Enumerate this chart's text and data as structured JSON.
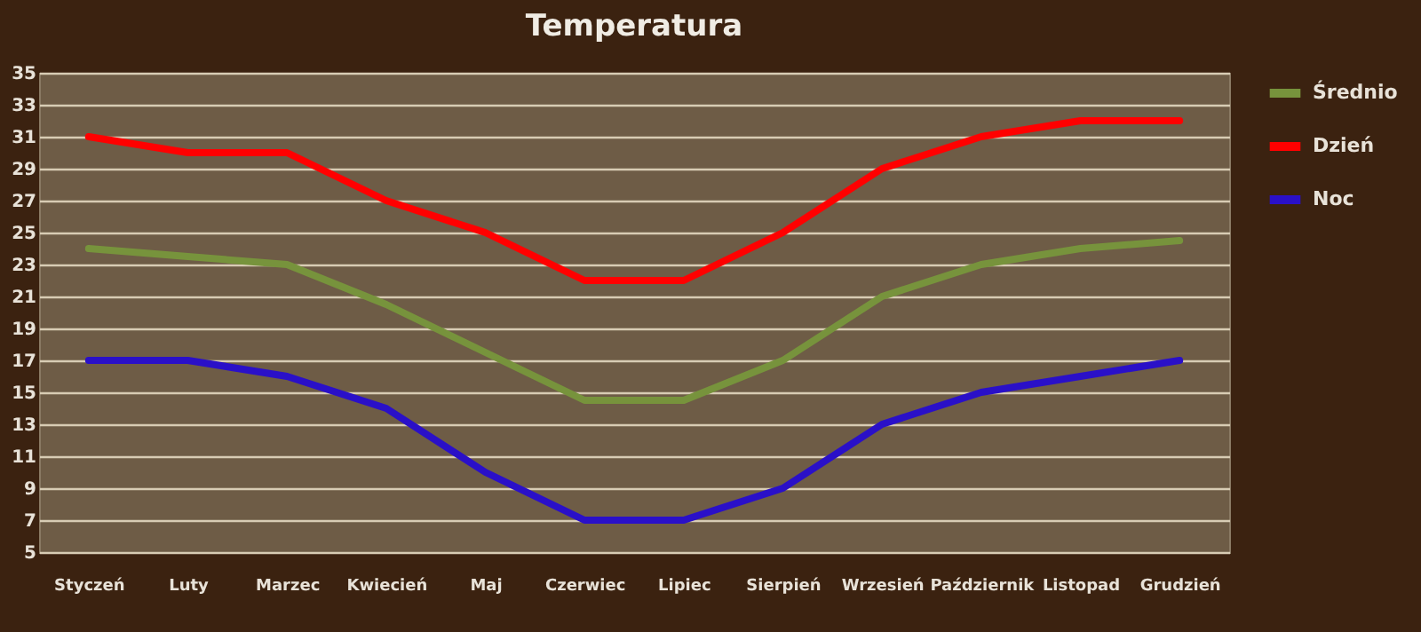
{
  "chart_data": {
    "type": "line",
    "title": "Temperatura",
    "categories": [
      "Styczeń",
      "Luty",
      "Marzec",
      "Kwiecień",
      "Maj",
      "Czerwiec",
      "Lipiec",
      "Sierpień",
      "Wrzesień",
      "Październik",
      "Listopad",
      "Grudzień"
    ],
    "series": [
      {
        "name": "Średnio",
        "color": "#77933c",
        "values": [
          24,
          23.5,
          23,
          20.5,
          17.5,
          14.5,
          14.5,
          17,
          21,
          23,
          24,
          24.5
        ]
      },
      {
        "name": "Dzień",
        "color": "#ff0000",
        "values": [
          31,
          30,
          30,
          27,
          25,
          22,
          22,
          25,
          29,
          31,
          32,
          32
        ]
      },
      {
        "name": "Noc",
        "color": "#2a10c8",
        "values": [
          17,
          17,
          16,
          14,
          10,
          7,
          7,
          9,
          13,
          15,
          16,
          17
        ]
      }
    ],
    "ylim": [
      5,
      35
    ],
    "yticks": [
      5,
      7,
      9,
      11,
      13,
      15,
      17,
      19,
      21,
      23,
      25,
      27,
      29,
      31,
      33,
      35
    ],
    "grid": "y",
    "legend": "right"
  }
}
